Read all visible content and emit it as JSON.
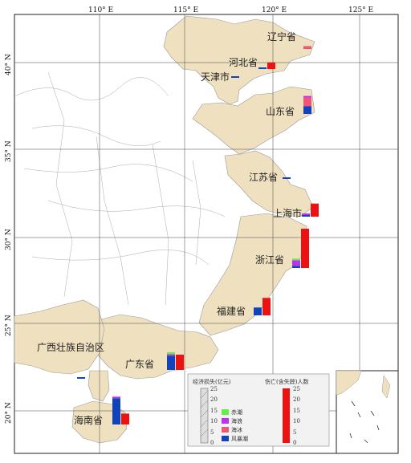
{
  "map": {
    "lon_ticks": [
      "110° E",
      "115° E",
      "120° E",
      "125° E"
    ],
    "lat_ticks": [
      "40° N",
      "35° N",
      "30° N",
      "25° N",
      "20° N"
    ],
    "provinces": [
      {
        "key": "liaoning",
        "label": "辽宁省"
      },
      {
        "key": "hebei",
        "label": "河北省"
      },
      {
        "key": "tianjin",
        "label": "天津市"
      },
      {
        "key": "shandong",
        "label": "山东省"
      },
      {
        "key": "jiangsu",
        "label": "江苏省"
      },
      {
        "key": "shanghai",
        "label": "上海市"
      },
      {
        "key": "zhejiang",
        "label": "浙江省"
      },
      {
        "key": "fujian",
        "label": "福建省"
      },
      {
        "key": "guangdong",
        "label": "广东省"
      },
      {
        "key": "guangxi",
        "label": "广西壮族自治区"
      },
      {
        "key": "hainan",
        "label": "海南省"
      }
    ]
  },
  "legend": {
    "economic_title": "经济损失(亿元)",
    "casualty_title": "伤亡(含失踪)人数",
    "econ_ticks": [
      "25",
      "20",
      "15",
      "10",
      "5",
      "0"
    ],
    "cas_ticks": [
      "25",
      "20",
      "15",
      "10",
      "5",
      "0"
    ],
    "categories": [
      {
        "key": "red_tide",
        "label": "赤潮",
        "color": "#66ee44"
      },
      {
        "key": "wave",
        "label": "海浪",
        "color": "#bb33ee"
      },
      {
        "key": "ice",
        "label": "海冰",
        "color": "#ee5577"
      },
      {
        "key": "storm_surge",
        "label": "风暴潮",
        "color": "#1144bb"
      }
    ],
    "casualty_color": "#ee1111"
  },
  "chart_data": {
    "type": "bar",
    "economic_loss_unit": "亿元",
    "casualty_unit": "人",
    "provinces": [
      {
        "name": "辽宁省",
        "economic": {
          "red_tide": 0,
          "wave": 0,
          "ice": 1.3,
          "storm_surge": 0
        },
        "casualties": 0
      },
      {
        "name": "河北省",
        "economic": {
          "red_tide": 0,
          "wave": 0,
          "ice": 0,
          "storm_surge": 0.7
        },
        "casualties": 3
      },
      {
        "name": "天津市",
        "economic": {
          "red_tide": 0,
          "wave": 0,
          "ice": 0,
          "storm_surge": 0.4
        },
        "casualties": 0
      },
      {
        "name": "山东省",
        "economic": {
          "red_tide": 0,
          "wave": 0.6,
          "ice": 3.9,
          "storm_surge": 3.6
        },
        "casualties": 0
      },
      {
        "name": "江苏省",
        "economic": {
          "red_tide": 0,
          "wave": 0,
          "ice": 0,
          "storm_surge": 0.4
        },
        "casualties": 0
      },
      {
        "name": "上海市",
        "economic": {
          "red_tide": 0,
          "wave": 0.4,
          "ice": 0,
          "storm_surge": 0.5
        },
        "casualties": 6
      },
      {
        "name": "浙江省",
        "economic": {
          "red_tide": 0.8,
          "wave": 2.5,
          "ice": 0,
          "storm_surge": 1.0
        },
        "casualties": 18
      },
      {
        "name": "福建省",
        "economic": {
          "red_tide": 0,
          "wave": 0,
          "ice": 0,
          "storm_surge": 3.6
        },
        "casualties": 8
      },
      {
        "name": "广东省",
        "economic": {
          "red_tide": 0.9,
          "wave": 0.3,
          "ice": 0,
          "storm_surge": 6.5
        },
        "casualties": 7
      },
      {
        "name": "广西壮族自治区",
        "economic": {
          "red_tide": 0,
          "wave": 0,
          "ice": 0,
          "storm_surge": 0.4
        },
        "casualties": 0
      },
      {
        "name": "海南省",
        "economic": {
          "red_tide": 0,
          "wave": 0.6,
          "ice": 0,
          "storm_surge": 12.0
        },
        "casualties": 5
      }
    ]
  }
}
